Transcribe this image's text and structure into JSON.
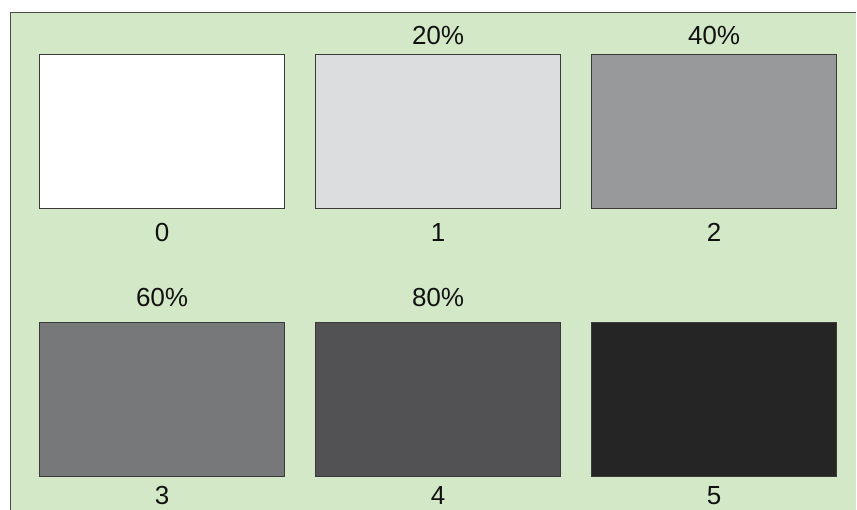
{
  "swatches": [
    {
      "number": "0",
      "percent": "",
      "color": "#ffffff"
    },
    {
      "number": "1",
      "percent": "20%",
      "color": "#dcdddf"
    },
    {
      "number": "2",
      "percent": "40%",
      "color": "#98999b"
    },
    {
      "number": "3",
      "percent": "60%",
      "color": "#77787a"
    },
    {
      "number": "4",
      "percent": "80%",
      "color": "#525254"
    },
    {
      "number": "5",
      "percent": "",
      "color": "#262526"
    }
  ],
  "background_color": "#d3e8c7"
}
